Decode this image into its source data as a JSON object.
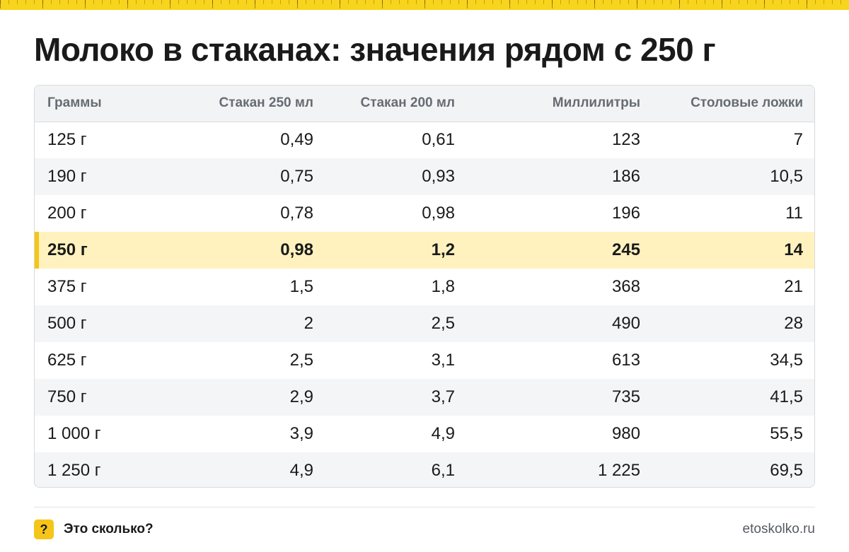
{
  "title": "Молоко в стаканах: значения рядом с 250 г",
  "colors": {
    "accent": "#f5c518",
    "highlight_row": "#fff2bf",
    "stripe": "#f4f5f7"
  },
  "table": {
    "headers": [
      "Граммы",
      "Стакан 250 мл",
      "Стакан 200 мл",
      "Миллилитры",
      "Столовые ложки"
    ],
    "highlight_row_index": 3,
    "rows": [
      [
        "125 г",
        "0,49",
        "0,61",
        "123",
        "7"
      ],
      [
        "190 г",
        "0,75",
        "0,93",
        "186",
        "10,5"
      ],
      [
        "200 г",
        "0,78",
        "0,98",
        "196",
        "11"
      ],
      [
        "250 г",
        "0,98",
        "1,2",
        "245",
        "14"
      ],
      [
        "375 г",
        "1,5",
        "1,8",
        "368",
        "21"
      ],
      [
        "500 г",
        "2",
        "2,5",
        "490",
        "28"
      ],
      [
        "625 г",
        "2,5",
        "3,1",
        "613",
        "34,5"
      ],
      [
        "750 г",
        "2,9",
        "3,7",
        "735",
        "41,5"
      ],
      [
        "1 000 г",
        "3,9",
        "4,9",
        "980",
        "55,5"
      ],
      [
        "1 250 г",
        "4,9",
        "6,1",
        "1 225",
        "69,5"
      ]
    ]
  },
  "footer": {
    "badge": "?",
    "badge_icon": "question-icon",
    "brand": "Это сколько?",
    "site": "etoskolko.ru"
  }
}
